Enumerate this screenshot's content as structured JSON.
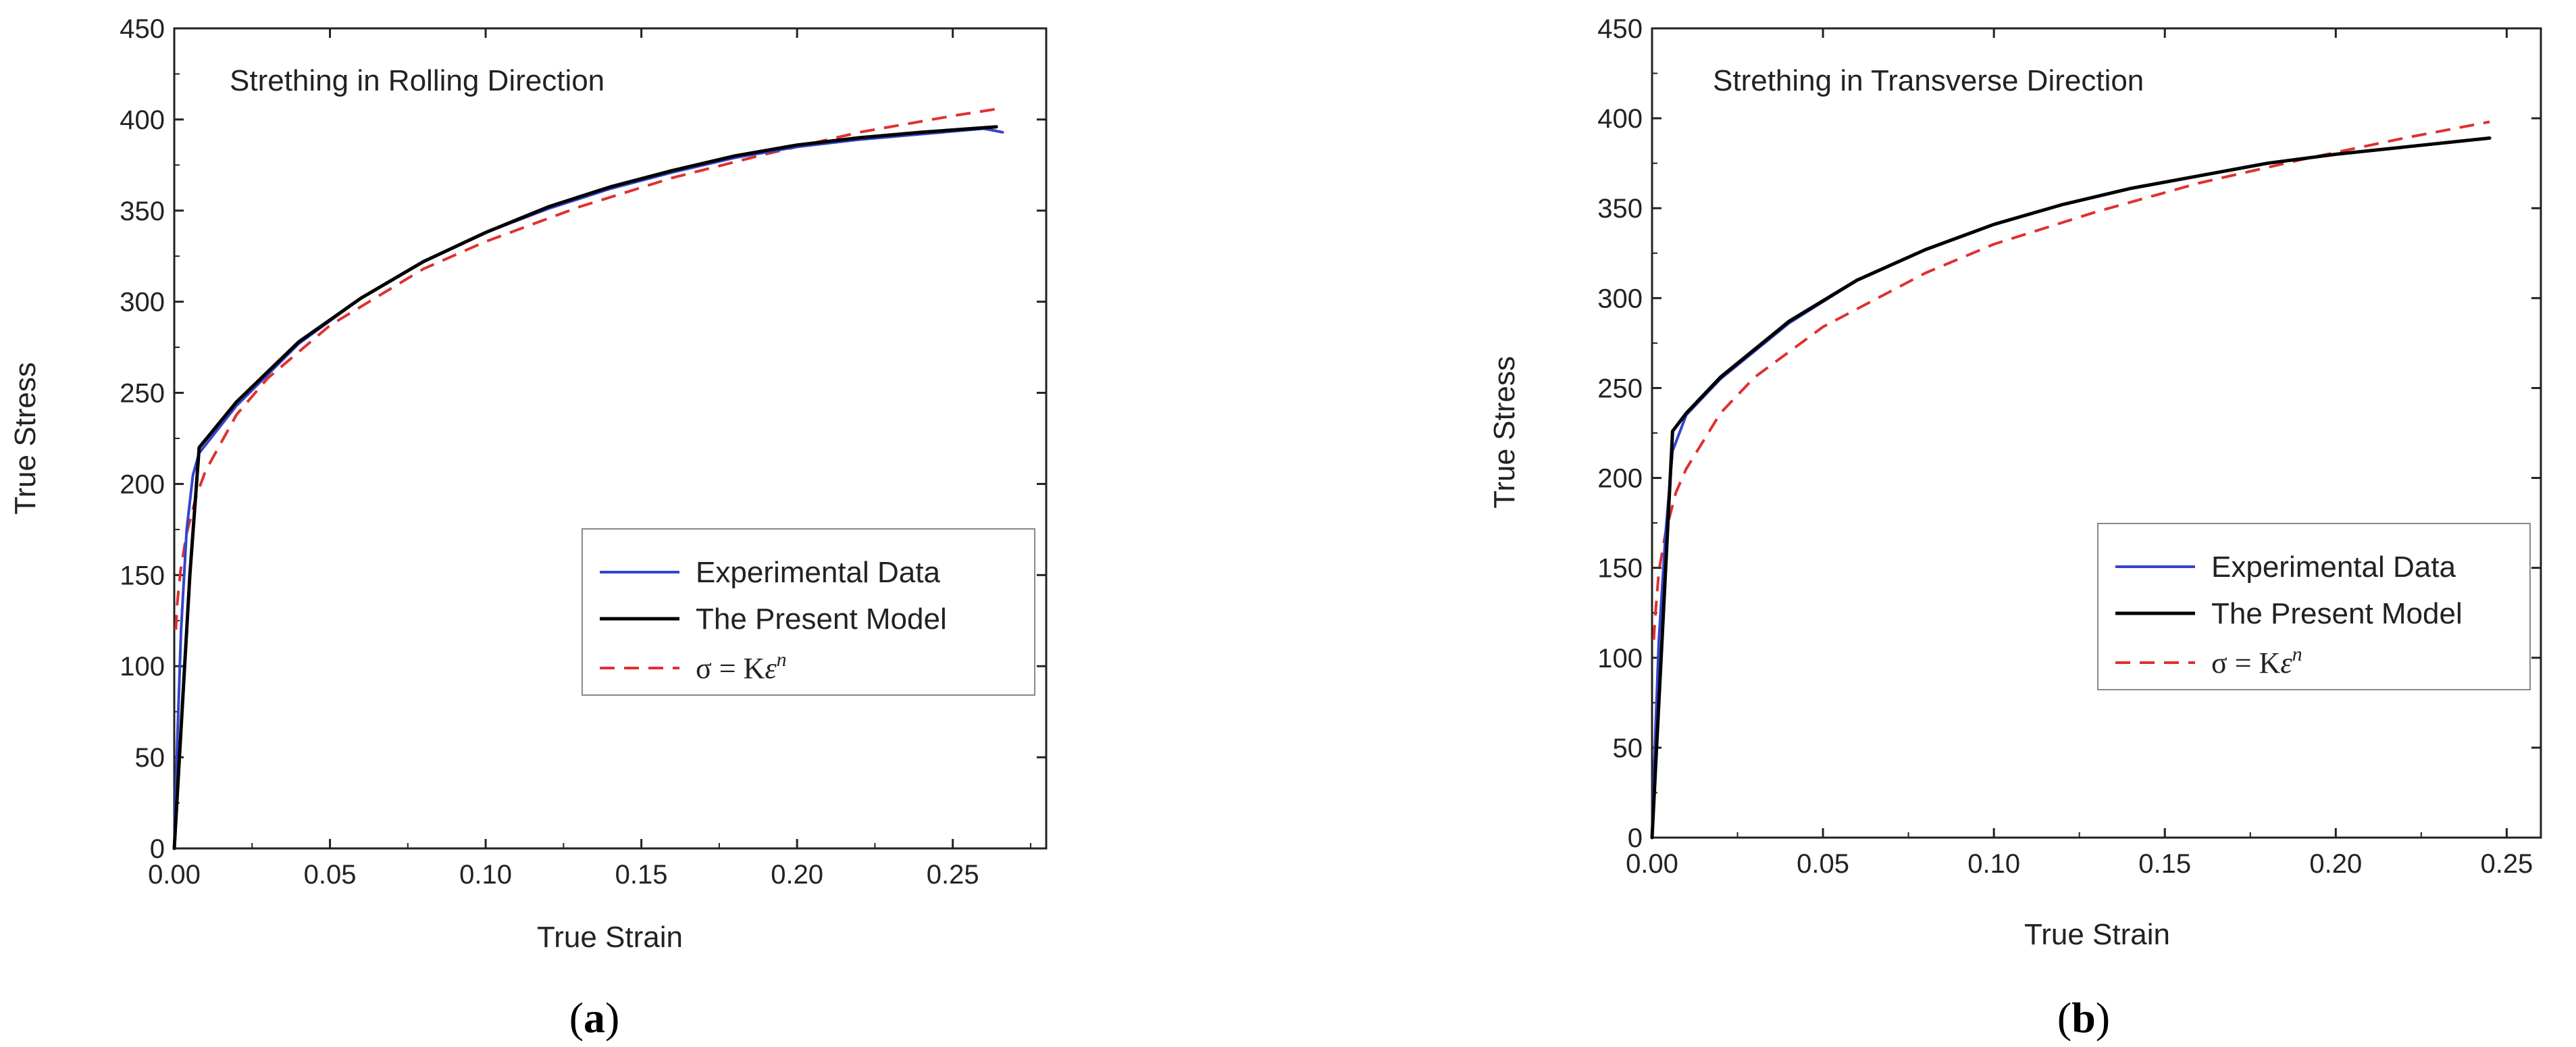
{
  "chart_data": [
    {
      "type": "line",
      "panel": "a",
      "caption_letter": "a",
      "title": "Strething in Rolling Direction",
      "xlabel": "True Strain",
      "ylabel": "True Stress",
      "xlim": [
        0,
        0.28
      ],
      "ylim": [
        0,
        450
      ],
      "xticks": [
        "0.00",
        "0.05",
        "0.10",
        "0.15",
        "0.20",
        "0.25"
      ],
      "yticks": [
        "0",
        "50",
        "100",
        "150",
        "200",
        "250",
        "300",
        "350",
        "400",
        "450"
      ],
      "legend": {
        "placement": "center-right",
        "entries": [
          "Experimental Data",
          "The Present Model"
        ],
        "equation": {
          "lhs": "σ = K",
          "eps": "ε",
          "exp": "n"
        }
      },
      "series": [
        {
          "name": "Experimental Data",
          "color": "#3344cc",
          "style": "solid",
          "x": [
            0,
            0.001,
            0.0022,
            0.004,
            0.006,
            0.008,
            0.02,
            0.04,
            0.06,
            0.08,
            0.1,
            0.12,
            0.14,
            0.16,
            0.18,
            0.2,
            0.22,
            0.24,
            0.26,
            0.266
          ],
          "y": [
            0,
            60,
            120,
            175,
            205,
            217,
            243,
            277,
            302,
            322,
            338,
            351,
            362,
            371,
            379,
            385,
            389,
            392,
            395,
            393
          ]
        },
        {
          "name": "The Present Model",
          "color": "#000000",
          "style": "solid",
          "x": [
            0,
            0.0025,
            0.005,
            0.008,
            0.02,
            0.04,
            0.06,
            0.08,
            0.1,
            0.12,
            0.14,
            0.16,
            0.18,
            0.2,
            0.22,
            0.24,
            0.264
          ],
          "y": [
            0,
            75,
            150,
            220,
            245,
            278,
            302,
            322,
            338,
            352,
            363,
            372,
            380,
            386,
            390,
            393,
            396
          ]
        },
        {
          "name": "σ = Kεⁿ",
          "color": "#e03030",
          "style": "dashed",
          "x": [
            0.0005,
            0.001,
            0.002,
            0.004,
            0.007,
            0.01,
            0.02,
            0.03,
            0.05,
            0.08,
            0.1,
            0.13,
            0.16,
            0.19,
            0.22,
            0.25,
            0.265
          ],
          "y": [
            120,
            135,
            152,
            173,
            193,
            207,
            238,
            258,
            287,
            318,
            333,
            352,
            368,
            381,
            393,
            402,
            406
          ]
        }
      ]
    },
    {
      "type": "line",
      "panel": "b",
      "caption_letter": "b",
      "title": "Strething in Transverse Direction",
      "xlabel": "True Strain",
      "ylabel": "True Stress",
      "xlim": [
        0,
        0.26
      ],
      "ylim": [
        0,
        450
      ],
      "xticks": [
        "0.00",
        "0.05",
        "0.10",
        "0.15",
        "0.20",
        "0.25"
      ],
      "yticks": [
        "0",
        "50",
        "100",
        "150",
        "200",
        "250",
        "300",
        "350",
        "400",
        "450"
      ],
      "legend": {
        "placement": "center-right",
        "entries": [
          "Experimental Data",
          "The Present Model"
        ],
        "equation": {
          "lhs": "σ = K",
          "eps": "ε",
          "exp": "n"
        }
      },
      "series": [
        {
          "name": "Experimental Data",
          "color": "#3344cc",
          "style": "solid",
          "x": [
            0,
            0.001,
            0.002,
            0.004,
            0.006,
            0.01,
            0.02,
            0.04,
            0.06,
            0.08,
            0.1,
            0.12,
            0.14,
            0.16,
            0.18,
            0.2,
            0.22,
            0.245
          ],
          "y": [
            0,
            60,
            110,
            170,
            215,
            235,
            255,
            286,
            310,
            327,
            341,
            352,
            361,
            368,
            375,
            380,
            384,
            389
          ]
        },
        {
          "name": "The Present Model",
          "color": "#000000",
          "style": "solid",
          "x": [
            0,
            0.002,
            0.004,
            0.006,
            0.01,
            0.02,
            0.04,
            0.06,
            0.08,
            0.1,
            0.12,
            0.14,
            0.16,
            0.18,
            0.2,
            0.22,
            0.245
          ],
          "y": [
            0,
            75,
            150,
            226,
            236,
            256,
            287,
            310,
            327,
            341,
            352,
            361,
            368,
            375,
            380,
            384,
            389
          ]
        },
        {
          "name": "σ = Kεⁿ",
          "color": "#e03030",
          "style": "dashed",
          "x": [
            0.0005,
            0.001,
            0.002,
            0.004,
            0.007,
            0.01,
            0.02,
            0.03,
            0.05,
            0.08,
            0.1,
            0.13,
            0.16,
            0.19,
            0.22,
            0.245
          ],
          "y": [
            110,
            125,
            148,
            170,
            192,
            205,
            236,
            256,
            284,
            314,
            330,
            348,
            364,
            377,
            389,
            398
          ]
        }
      ]
    }
  ]
}
